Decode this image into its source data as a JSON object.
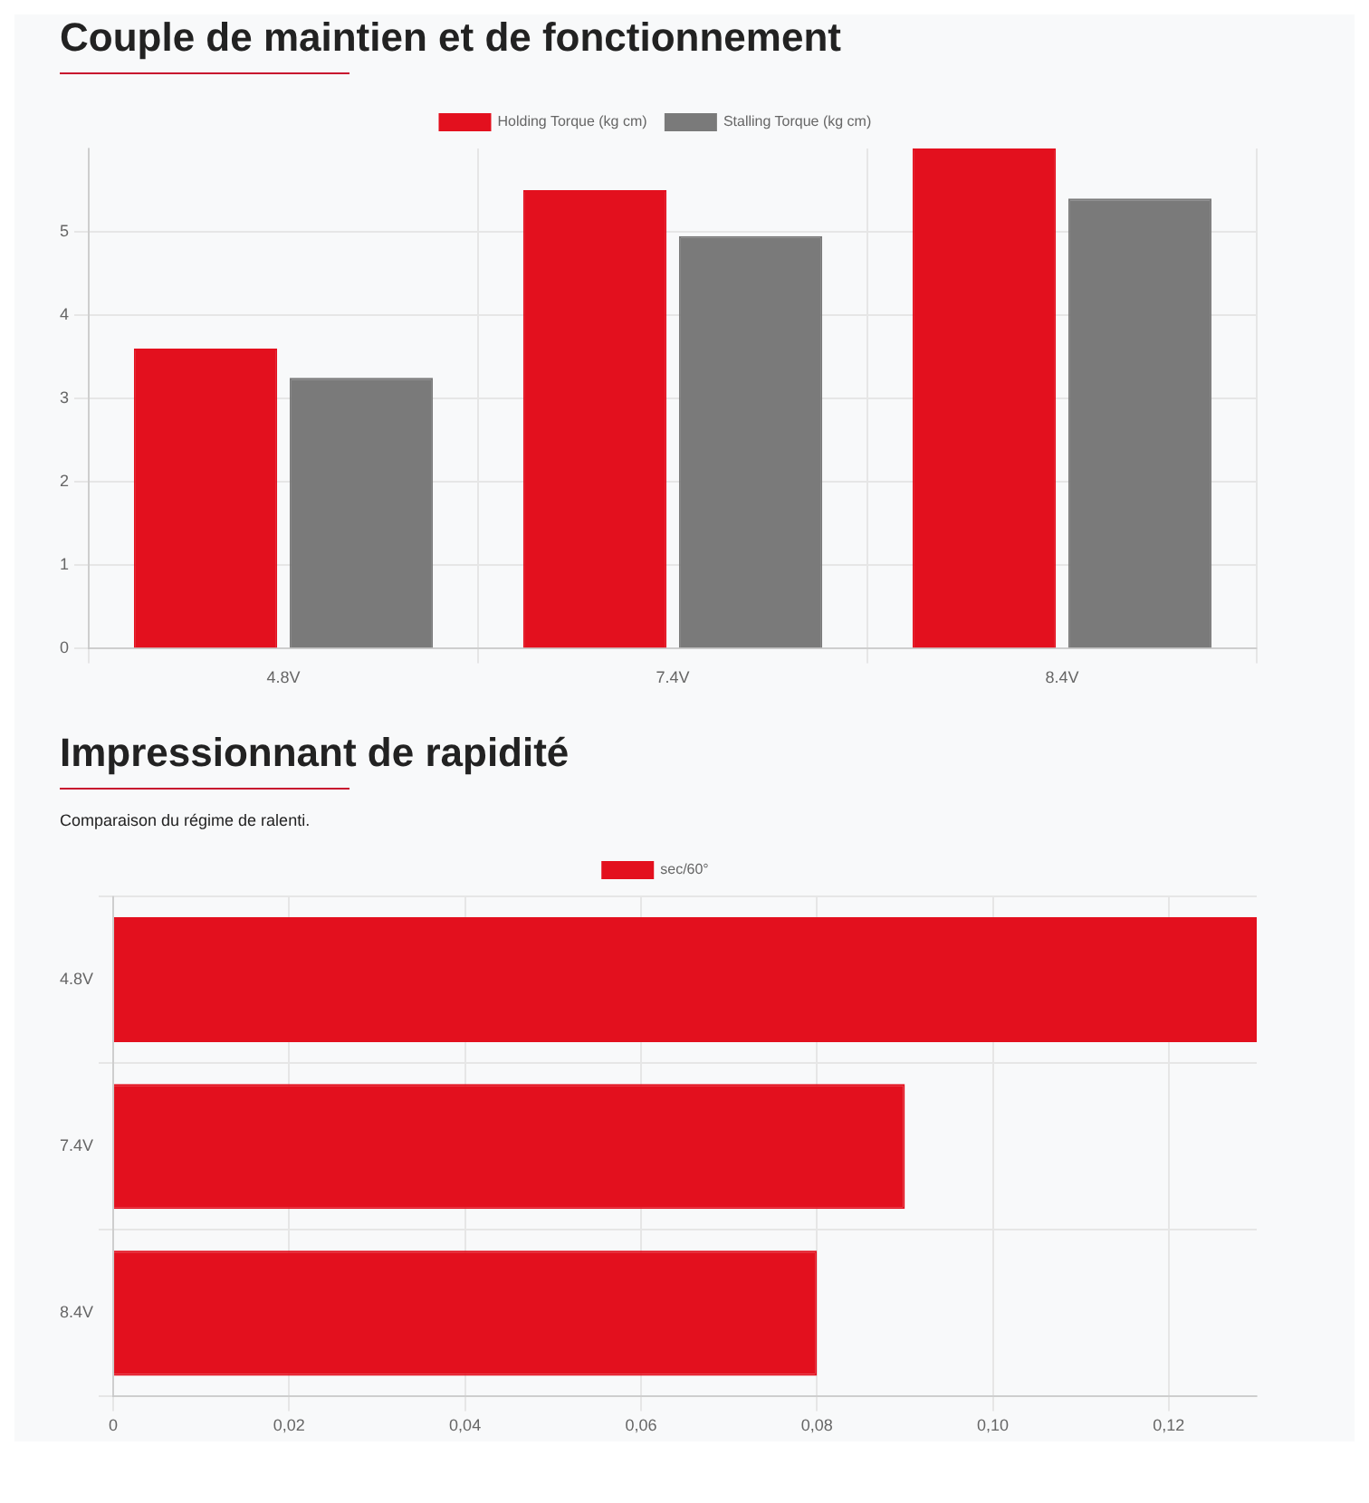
{
  "chart_data": [
    {
      "type": "bar",
      "title": "Couple de maintien et de fonctionnement",
      "categories": [
        "4.8V",
        "7.4V",
        "8.4V"
      ],
      "series": [
        {
          "name": "Holding Torque (kg cm)",
          "color": "#e3101e",
          "values": [
            3.6,
            5.5,
            6.0
          ]
        },
        {
          "name": "Stalling Torque (kg cm)",
          "color": "#7a7a7a",
          "values": [
            3.25,
            4.95,
            5.4
          ]
        }
      ],
      "ylim": [
        0,
        6
      ],
      "yticks": [
        0,
        1,
        2,
        3,
        4,
        5
      ],
      "grid": true,
      "legend": "top"
    },
    {
      "type": "bar",
      "title": "Impressionnant de rapidité",
      "subtitle": "Comparaison du régime de ralenti.",
      "orientation": "horizontal",
      "categories": [
        "4.8V",
        "7.4V",
        "8.4V"
      ],
      "series": [
        {
          "name": "sec/60°",
          "color": "#e3101e",
          "values": [
            0.13,
            0.09,
            0.08
          ]
        }
      ],
      "xlim": [
        0,
        0.13
      ],
      "xticks": [
        0,
        {
          "value": 0.02,
          "label": "0,02"
        },
        {
          "value": 0.04,
          "label": "0,04"
        },
        {
          "value": 0.06,
          "label": "0,06"
        },
        {
          "value": 0.08,
          "label": "0,08"
        },
        {
          "value": 0.1,
          "label": "0,10"
        },
        {
          "value": 0.12,
          "label": "0,12"
        }
      ],
      "grid": true,
      "legend": "top"
    }
  ]
}
